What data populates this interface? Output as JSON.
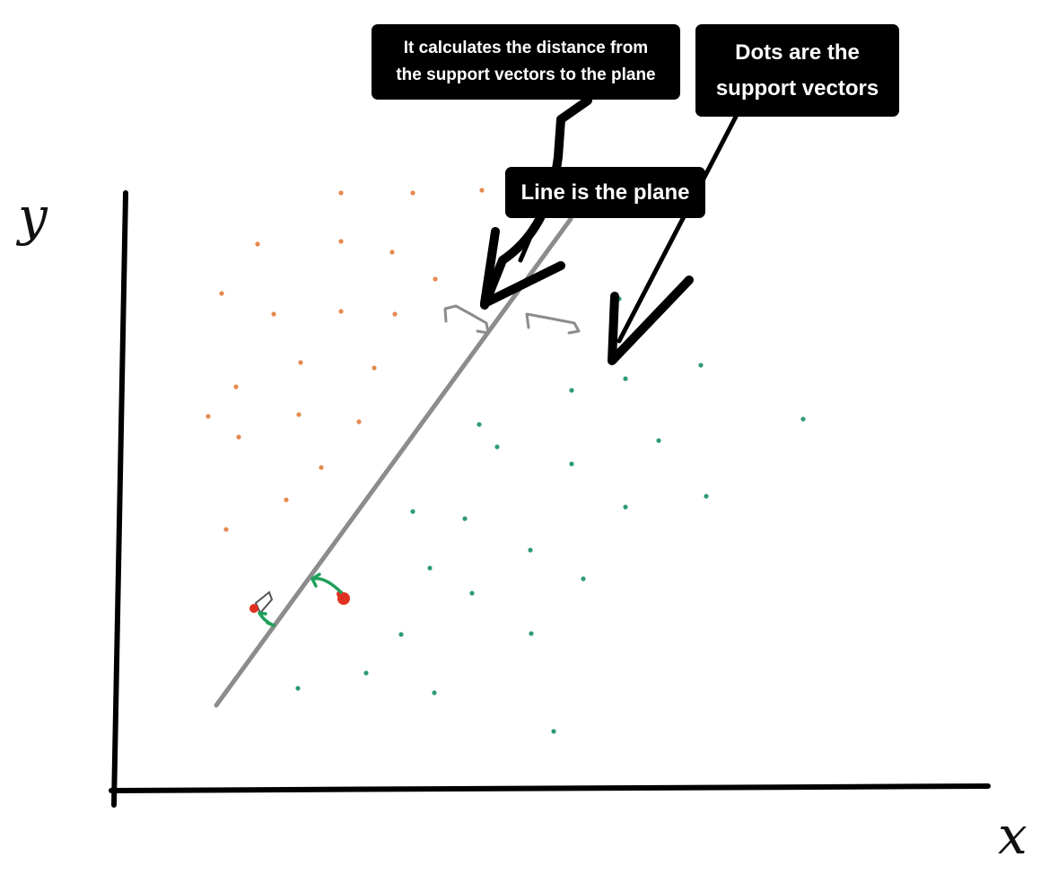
{
  "annotations": {
    "distance_lines": [
      "It calculates the distance from",
      "the support vectors to the plane"
    ],
    "dots_lines": [
      "Dots are the",
      "support vectors"
    ],
    "plane_label": "Line is the plane"
  },
  "axes": {
    "x_label": "x",
    "y_label": "y"
  },
  "colors": {
    "class_a": "#e6894e",
    "class_b": "#2e9a7c",
    "plane": "#8c8c8c",
    "axis": "#000000",
    "support_vector_marker": "#e03020",
    "distance_arrow": "#1fa05a"
  },
  "chart_data": {
    "type": "scatter",
    "series": [
      {
        "points": [
          [
            380,
            215
          ],
          [
            460,
            215
          ],
          [
            537,
            212
          ],
          [
            287,
            272
          ],
          [
            380,
            269
          ],
          [
            437,
            281
          ],
          [
            247,
            327
          ],
          [
            305,
            350
          ],
          [
            380,
            347
          ],
          [
            440,
            350
          ],
          [
            485,
            311
          ],
          [
            335,
            404
          ],
          [
            417,
            410
          ],
          [
            263,
            431
          ],
          [
            232,
            464
          ],
          [
            333,
            462
          ],
          [
            400,
            470
          ],
          [
            266,
            487
          ],
          [
            358,
            521
          ],
          [
            319,
            557
          ],
          [
            252,
            590
          ]
        ]
      },
      {
        "points": [
          [
            690,
            333
          ],
          [
            697,
            422
          ],
          [
            637,
            435
          ],
          [
            781,
            407
          ],
          [
            895,
            467
          ],
          [
            534,
            473
          ],
          [
            554,
            498
          ],
          [
            734,
            491
          ],
          [
            637,
            517
          ],
          [
            697,
            565
          ],
          [
            787,
            553
          ],
          [
            460,
            570
          ],
          [
            518,
            578
          ],
          [
            591,
            613
          ],
          [
            479,
            633
          ],
          [
            650,
            645
          ],
          [
            526,
            661
          ],
          [
            447,
            707
          ],
          [
            592,
            706
          ],
          [
            408,
            750
          ],
          [
            332,
            767
          ],
          [
            484,
            772
          ],
          [
            617,
            815
          ]
        ]
      }
    ]
  }
}
